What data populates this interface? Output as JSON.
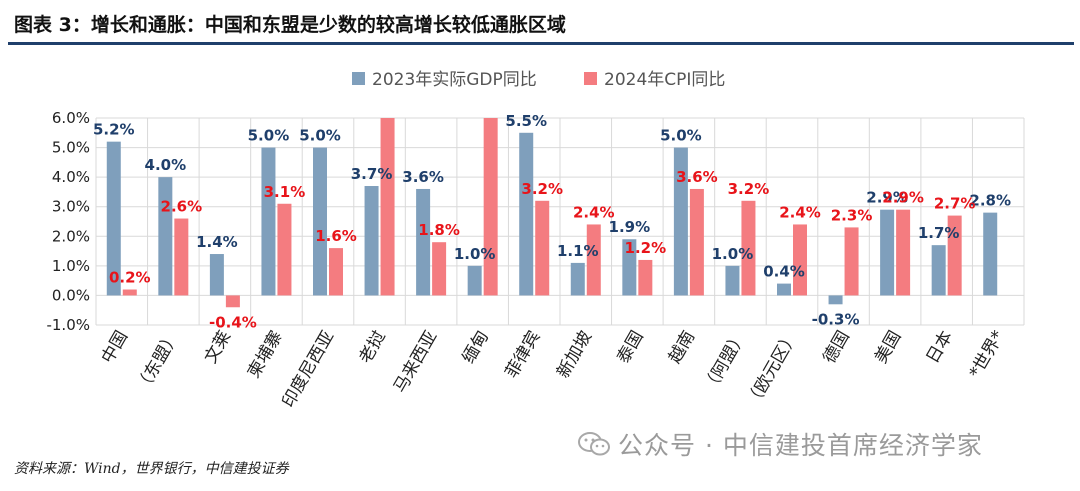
{
  "header": {
    "title": "图表 3：增长和通胀：中国和东盟是少数的较高增长较低通胀区域"
  },
  "chart_data": {
    "type": "bar",
    "categories": [
      "中国",
      "（东盟）",
      "文莱",
      "柬埔寨",
      "印度尼西亚",
      "老挝",
      "马来西亚",
      "缅甸",
      "菲律宾",
      "新加坡",
      "泰国",
      "越南",
      "（阿盟）",
      "（欧元区）",
      "德国",
      "美国",
      "日本",
      "*世界*"
    ],
    "series": [
      {
        "name": "2023年实际GDP同比",
        "color": "#7f9fbc",
        "values": [
          5.2,
          4.0,
          1.4,
          5.0,
          5.0,
          3.7,
          3.6,
          1.0,
          5.5,
          1.1,
          1.9,
          5.0,
          1.0,
          0.4,
          -0.3,
          2.9,
          1.7,
          2.8
        ],
        "labels": [
          "5.2%",
          "4.0%",
          "1.4%",
          "5.0%",
          "5.0%",
          "3.7%",
          "3.6%",
          "1.0%",
          "5.5%",
          "1.1%",
          "1.9%",
          "5.0%",
          "1.0%",
          "0.4%",
          "-0.3%",
          "2.9%",
          "1.7%",
          "2.8%"
        ],
        "label_color": "#1f3f6b"
      },
      {
        "name": "2024年CPI同比",
        "color": "#f47c80",
        "values": [
          0.2,
          2.6,
          -0.4,
          3.1,
          1.6,
          6.0,
          1.8,
          6.0,
          3.2,
          2.4,
          1.2,
          3.6,
          3.2,
          2.4,
          2.3,
          2.9,
          2.7,
          null
        ],
        "labels": [
          "0.2%",
          "2.6%",
          "-0.4%",
          "3.1%",
          "1.6%",
          "",
          "1.8%",
          "",
          "3.2%",
          "2.4%",
          "1.2%",
          "3.6%",
          "3.2%",
          "2.4%",
          "2.3%",
          "2.9%",
          "2.7%",
          ""
        ],
        "label_color": "#e8141a"
      }
    ],
    "yticks": [
      "6.0%",
      "5.0%",
      "4.0%",
      "3.0%",
      "2.0%",
      "1.0%",
      "0.0%",
      "-1.0%"
    ],
    "ylim": [
      -1.0,
      6.0
    ],
    "grid": true,
    "legend": "top-center"
  },
  "footer": {
    "source": "资料来源：Wind，世界银行，中信建投证券",
    "watermark": "公众号 · 中信建投首席经济学家"
  }
}
